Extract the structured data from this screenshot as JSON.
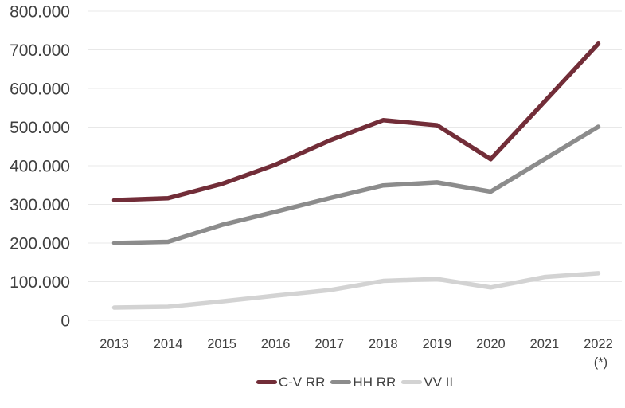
{
  "chart_data": {
    "type": "line",
    "title": "",
    "xlabel": "",
    "ylabel": "",
    "categories": [
      "2013",
      "2014",
      "2015",
      "2016",
      "2017",
      "2018",
      "2019",
      "2020",
      "2021",
      "2022"
    ],
    "last_category_note": "(*)",
    "series": [
      {
        "name": "C-V RR",
        "color": "#722D38",
        "values": [
          311000,
          316000,
          353000,
          403000,
          465000,
          518000,
          505000,
          417000,
          566000,
          716000
        ]
      },
      {
        "name": "HH RR",
        "color": "#8C8C8C",
        "values": [
          200000,
          203000,
          247000,
          281000,
          316000,
          349000,
          357000,
          333000,
          417000,
          501000
        ]
      },
      {
        "name": "VV II",
        "color": "#D3D3D3",
        "values": [
          33000,
          35000,
          49000,
          64000,
          78000,
          102000,
          107000,
          85000,
          112000,
          122000
        ]
      }
    ],
    "ylim": [
      0,
      800000
    ],
    "y_tick_step": 100000,
    "y_tick_labels": [
      "0",
      "100.000",
      "200.000",
      "300.000",
      "400.000",
      "500.000",
      "600.000",
      "700.000",
      "800.000"
    ],
    "grid": true,
    "legend_position": "bottom"
  },
  "styles": {
    "background": "#FFFFFF",
    "grid_color": "#E8E8E8",
    "axis_text_color": "#404040",
    "line_width": 5.5
  }
}
